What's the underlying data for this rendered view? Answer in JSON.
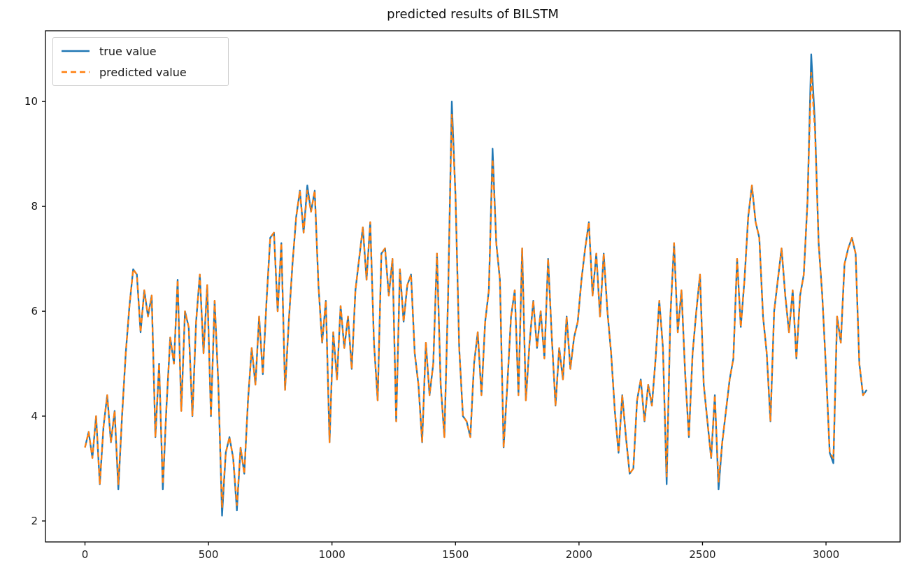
{
  "figure": {
    "title": "predicted results of BILSTM"
  },
  "chart_data": {
    "type": "line",
    "title": "predicted results of BILSTM",
    "xlabel": "",
    "ylabel": "",
    "grid": false,
    "legend_position": "upper-left",
    "xlim": [
      -160,
      3300
    ],
    "ylim": [
      1.6,
      11.35
    ],
    "x_ticks": [
      0,
      500,
      1000,
      1500,
      2000,
      2500,
      3000
    ],
    "y_ticks": [
      2,
      4,
      6,
      8,
      10
    ],
    "x_start": 0,
    "x_step": 15,
    "series": [
      {
        "name": "true value",
        "color": "#1f77b4",
        "style": "solid",
        "values": [
          3.4,
          3.7,
          3.2,
          4.0,
          2.7,
          3.8,
          4.4,
          3.5,
          4.1,
          2.6,
          4.0,
          5.2,
          6.1,
          6.8,
          6.7,
          5.6,
          6.4,
          5.9,
          6.3,
          3.6,
          5.0,
          2.6,
          4.2,
          5.5,
          5.0,
          6.6,
          4.1,
          6.0,
          5.7,
          4.0,
          5.8,
          6.7,
          5.2,
          6.5,
          4.0,
          6.2,
          4.6,
          2.1,
          3.3,
          3.6,
          3.2,
          2.2,
          3.4,
          2.9,
          4.3,
          5.3,
          4.6,
          5.9,
          4.8,
          6.2,
          7.4,
          7.5,
          6.0,
          7.3,
          4.5,
          5.8,
          6.9,
          7.8,
          8.3,
          7.5,
          8.4,
          7.9,
          8.3,
          6.5,
          5.4,
          6.2,
          3.5,
          5.6,
          4.7,
          6.1,
          5.3,
          5.9,
          4.9,
          6.4,
          7.0,
          7.6,
          6.6,
          7.7,
          5.4,
          4.3,
          7.1,
          7.2,
          6.3,
          7.0,
          3.9,
          6.8,
          5.8,
          6.5,
          6.7,
          5.2,
          4.6,
          3.5,
          5.4,
          4.4,
          5.0,
          7.1,
          4.6,
          3.6,
          6.3,
          10.0,
          8.2,
          5.3,
          4.0,
          3.9,
          3.6,
          5.0,
          5.6,
          4.4,
          5.8,
          6.4,
          9.1,
          7.3,
          6.6,
          3.4,
          4.6,
          5.9,
          6.4,
          4.4,
          7.2,
          4.3,
          5.4,
          6.2,
          5.3,
          6.0,
          5.1,
          7.0,
          5.5,
          4.2,
          5.3,
          4.7,
          5.9,
          4.9,
          5.5,
          5.8,
          6.6,
          7.2,
          7.7,
          6.3,
          7.1,
          5.9,
          7.1,
          6.0,
          5.2,
          4.1,
          3.3,
          4.4,
          3.6,
          2.9,
          3.0,
          4.3,
          4.7,
          3.9,
          4.6,
          4.2,
          5.1,
          6.2,
          5.3,
          2.7,
          5.9,
          7.3,
          5.6,
          6.4,
          4.8,
          3.6,
          5.2,
          6.0,
          6.7,
          4.6,
          3.9,
          3.2,
          4.4,
          2.6,
          3.5,
          4.1,
          4.7,
          5.1,
          7.0,
          5.7,
          6.6,
          7.8,
          8.4,
          7.7,
          7.4,
          5.9,
          5.2,
          3.9,
          6.0,
          6.6,
          7.2,
          6.3,
          5.6,
          6.4,
          5.1,
          6.3,
          6.7,
          8.1,
          10.9,
          9.6,
          7.3,
          6.3,
          4.9,
          3.3,
          3.1,
          5.9,
          5.4,
          6.9,
          7.2,
          7.4,
          7.1,
          5.0,
          4.4,
          4.5
        ]
      },
      {
        "name": "predicted value",
        "color": "#ff7f0e",
        "style": "dashed",
        "values": [
          3.4,
          3.7,
          3.2,
          4.0,
          2.7,
          3.8,
          4.4,
          3.5,
          4.1,
          2.7,
          4.0,
          5.2,
          6.1,
          6.8,
          6.7,
          5.6,
          6.4,
          5.9,
          6.3,
          3.6,
          5.0,
          2.7,
          4.2,
          5.5,
          5.0,
          6.6,
          4.1,
          6.0,
          5.7,
          4.0,
          5.8,
          6.7,
          5.2,
          6.5,
          4.0,
          6.2,
          4.6,
          2.25,
          3.3,
          3.6,
          3.2,
          2.3,
          3.4,
          2.9,
          4.3,
          5.3,
          4.6,
          5.9,
          4.8,
          6.2,
          7.4,
          7.5,
          6.0,
          7.3,
          4.5,
          5.8,
          6.9,
          7.8,
          8.3,
          7.5,
          8.3,
          7.9,
          8.3,
          6.5,
          5.4,
          6.2,
          3.5,
          5.6,
          4.7,
          6.1,
          5.3,
          5.9,
          4.9,
          6.4,
          7.0,
          7.6,
          6.6,
          7.7,
          5.4,
          4.3,
          7.1,
          7.2,
          6.3,
          7.0,
          3.9,
          6.8,
          5.8,
          6.5,
          6.7,
          5.2,
          4.6,
          3.5,
          5.4,
          4.4,
          5.0,
          7.1,
          4.6,
          3.6,
          6.3,
          9.75,
          8.2,
          5.3,
          4.0,
          3.9,
          3.6,
          5.0,
          5.6,
          4.4,
          5.8,
          6.4,
          8.9,
          7.3,
          6.6,
          3.4,
          4.6,
          5.9,
          6.4,
          4.4,
          7.2,
          4.3,
          5.4,
          6.2,
          5.3,
          6.0,
          5.1,
          7.0,
          5.5,
          4.2,
          5.3,
          4.7,
          5.9,
          4.9,
          5.5,
          5.8,
          6.6,
          7.2,
          7.7,
          6.3,
          7.1,
          5.9,
          7.1,
          6.0,
          5.2,
          4.1,
          3.3,
          4.4,
          3.6,
          2.9,
          3.0,
          4.3,
          4.7,
          3.9,
          4.6,
          4.2,
          5.1,
          6.2,
          5.3,
          2.85,
          5.9,
          7.3,
          5.6,
          6.4,
          4.8,
          3.6,
          5.2,
          6.0,
          6.7,
          4.6,
          3.9,
          3.2,
          4.4,
          2.75,
          3.5,
          4.1,
          4.7,
          5.1,
          7.0,
          5.7,
          6.6,
          7.8,
          8.4,
          7.7,
          7.4,
          5.9,
          5.2,
          3.9,
          6.0,
          6.6,
          7.2,
          6.3,
          5.6,
          6.4,
          5.1,
          6.3,
          6.7,
          8.1,
          10.55,
          9.45,
          7.3,
          6.3,
          4.9,
          3.3,
          3.2,
          5.9,
          5.4,
          6.9,
          7.2,
          7.4,
          7.1,
          5.0,
          4.4,
          4.5
        ]
      }
    ]
  },
  "axes": {
    "frame_color": "#000000",
    "tick_color": "#000000",
    "background": "#ffffff"
  }
}
